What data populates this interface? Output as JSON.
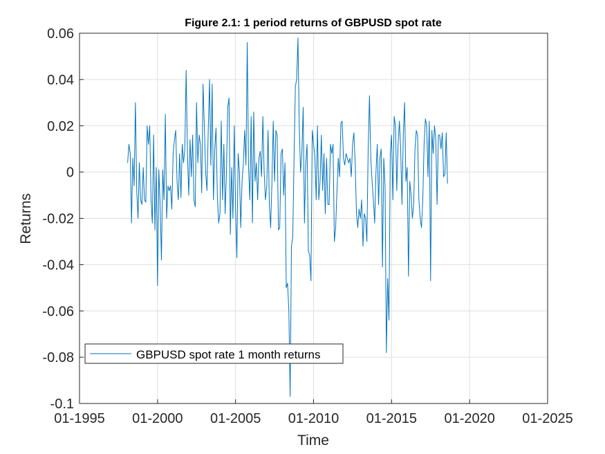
{
  "chart_data": {
    "type": "line",
    "title": "Figure 2.1: 1 period returns of GBPUSD spot rate",
    "xlabel": "Time",
    "ylabel": "Returns",
    "xlim": [
      "1995-01",
      "2025-01"
    ],
    "ylim": [
      -0.1,
      0.06
    ],
    "x_ticks": [
      "01-1995",
      "01-2000",
      "01-2005",
      "01-2010",
      "01-2015",
      "01-2020",
      "01-2025"
    ],
    "y_ticks": [
      "0.06",
      "0.04",
      "0.02",
      "0",
      "-0.02",
      "-0.04",
      "-0.06",
      "-0.08",
      "-0.1"
    ],
    "grid": true,
    "legend_position": "bottom-left",
    "series": [
      {
        "name": "GBPUSD spot rate 1 month returns",
        "color": "#0072BD",
        "x_start": "1998-02",
        "frequency": "monthly",
        "values": [
          0.004,
          0.012,
          0.008,
          -0.022,
          0.006,
          -0.006,
          0.03,
          -0.008,
          -0.02,
          0.004,
          -0.012,
          -0.014,
          0.002,
          -0.012,
          -0.013,
          0.02,
          0.012,
          0.02,
          -0.012,
          -0.022,
          0.016,
          -0.025,
          0.002,
          -0.049,
          0.001,
          -0.014,
          -0.038,
          0.001,
          -0.012,
          0.025,
          -0.02,
          -0.006,
          -0.008,
          -0.006,
          -0.016,
          0.008,
          0.014,
          0.018,
          -0.004,
          -0.012,
          0.008,
          -0.011,
          0.012,
          0.004,
          0.01,
          0.044,
          0.008,
          -0.01,
          0.014,
          -0.002,
          0.016,
          -0.012,
          -0.015,
          0.03,
          0.004,
          0.016,
          0.012,
          -0.009,
          0.038,
          0.02,
          0.0,
          -0.008,
          0.018,
          0.04,
          0.003,
          0.038,
          -0.012,
          0.01,
          0.019,
          -0.01,
          -0.022,
          -0.018,
          0.022,
          -0.012,
          0.012,
          -0.018,
          0.0,
          0.028,
          0.032,
          -0.027,
          0.002,
          -0.02,
          0.02,
          -0.016,
          -0.037,
          0.008,
          0.0,
          -0.024,
          -0.004,
          0.004,
          0.018,
          0.003,
          0.056,
          0.002,
          -0.012,
          0.024,
          -0.022,
          0.026,
          -0.004,
          0.004,
          -0.012,
          0.006,
          0.009,
          -0.002,
          0.024,
          0.0,
          -0.012,
          -0.006,
          0.018,
          -0.014,
          -0.024,
          -0.004,
          0.022,
          -0.004,
          0.018,
          0.016,
          -0.025,
          -0.024,
          0.008,
          0.01,
          -0.01,
          0.004,
          -0.05,
          -0.048,
          -0.06,
          -0.097,
          -0.032,
          -0.028,
          0.006,
          0.037,
          0.04,
          0.058,
          0.02,
          0.0,
          0.008,
          0.028,
          -0.022,
          0.004,
          0.012,
          -0.034,
          -0.036,
          -0.047,
          0.018,
          0.012,
          0.007,
          -0.012,
          0.02,
          -0.012,
          -0.004,
          0.016,
          -0.008,
          0.008,
          -0.018,
          0.006,
          -0.014,
          -0.014,
          0.012,
          0.008,
          0.012,
          -0.03,
          -0.024,
          -0.008,
          0.006,
          -0.002,
          0.021,
          0.022,
          0.006,
          0.003,
          0.008,
          0.006,
          0.004,
          0.006,
          -0.002,
          0.012,
          0.017,
          0.004,
          -0.018,
          -0.024,
          -0.016,
          -0.02,
          -0.012,
          -0.032,
          -0.018,
          -0.02,
          -0.03,
          0.01,
          0.033,
          0.006,
          -0.004,
          -0.012,
          -0.022,
          0.0,
          0.012,
          -0.014,
          0.006,
          0.01,
          -0.041,
          0.006,
          -0.006,
          -0.078,
          -0.046,
          -0.064,
          0.008,
          0.016,
          -0.012,
          0.024,
          0.02,
          -0.008,
          0.012,
          0.022,
          0.01,
          -0.014,
          0.016,
          0.03,
          -0.004,
          0.002,
          -0.045,
          -0.004,
          -0.01,
          -0.02,
          -0.014,
          0.01,
          0.018,
          0.016,
          -0.012,
          -0.02,
          -0.024,
          -0.012,
          0.012,
          0.023,
          0.02,
          -0.002,
          0.022,
          -0.047,
          0.018,
          0.008,
          0.02,
          0.014,
          -0.014,
          0.016,
          0.016,
          0.01,
          0.017,
          -0.002,
          -0.001,
          0.017,
          -0.005
        ]
      }
    ]
  }
}
